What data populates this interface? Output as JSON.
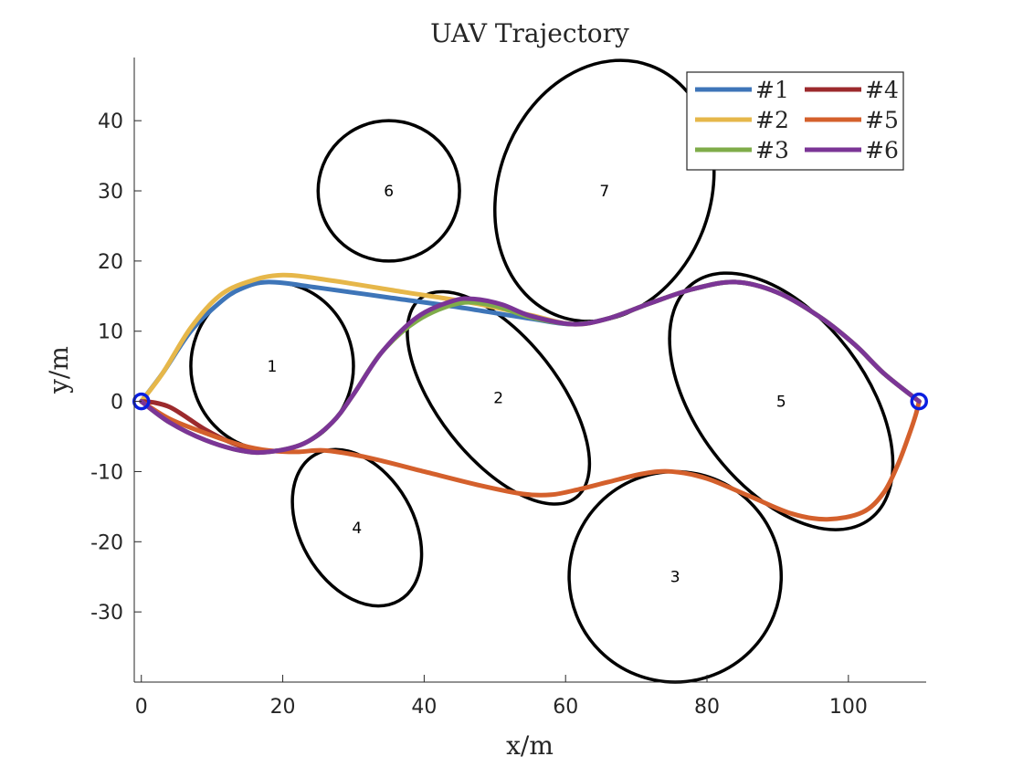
{
  "chart_data": {
    "type": "line",
    "title": "UAV Trajectory",
    "xlabel": "x/m",
    "ylabel": "y/m",
    "xlim": [
      -1,
      111
    ],
    "ylim": [
      -40,
      49
    ],
    "xticks": [
      0,
      20,
      40,
      60,
      80,
      100
    ],
    "yticks": [
      -30,
      -20,
      -10,
      0,
      10,
      20,
      30,
      40
    ],
    "legend": {
      "placement": "top-right",
      "columns": 2
    },
    "start_point": {
      "x": 0,
      "y": 0
    },
    "end_point": {
      "x": 110,
      "y": 0
    },
    "obstacles": [
      {
        "label": "1",
        "cx": 18.5,
        "cy": 5,
        "rx": 11.5,
        "ry": 12,
        "rotation_deg": 0
      },
      {
        "label": "2",
        "cx": 50.5,
        "cy": 0.5,
        "rx": 8.5,
        "ry": 18,
        "rotation_deg": 38
      },
      {
        "label": "3",
        "cx": 75.5,
        "cy": -25,
        "rx": 15,
        "ry": 15,
        "rotation_deg": 0
      },
      {
        "label": "4",
        "cx": 30.5,
        "cy": -18,
        "rx": 8,
        "ry": 12,
        "rotation_deg": 30
      },
      {
        "label": "5",
        "cx": 90.5,
        "cy": 0,
        "rx": 12,
        "ry": 21,
        "rotation_deg": 37
      },
      {
        "label": "6",
        "cx": 35,
        "cy": 30,
        "rx": 10,
        "ry": 10,
        "rotation_deg": 0
      },
      {
        "label": "7",
        "cx": 65.5,
        "cy": 30,
        "rx": 15,
        "ry": 19,
        "rotation_deg": -20
      }
    ],
    "series": [
      {
        "name": "#1",
        "color": "#3e75b8",
        "x": [
          0,
          3,
          7,
          11,
          14,
          18,
          25,
          35,
          45,
          55,
          61,
          66,
          72,
          78,
          84,
          90,
          96,
          101,
          105,
          110
        ],
        "y": [
          0,
          4,
          10,
          14,
          16,
          17,
          16.2,
          14.8,
          13.4,
          11.8,
          11,
          11.8,
          14,
          16,
          17,
          15.5,
          12,
          8,
          4,
          0
        ]
      },
      {
        "name": "#2",
        "color": "#e6b74a",
        "x": [
          0,
          3,
          7,
          11,
          15,
          20,
          27,
          37,
          47,
          55,
          61,
          66,
          72,
          78,
          84,
          90,
          96,
          101,
          105,
          110
        ],
        "y": [
          0,
          4,
          10.5,
          15,
          17,
          18,
          17.2,
          15.6,
          14,
          12.3,
          11,
          11.8,
          14,
          16,
          17,
          15.5,
          12,
          8,
          4,
          0
        ]
      },
      {
        "name": "#3",
        "color": "#7fac4a",
        "x": [
          0,
          4,
          9,
          14,
          18,
          23,
          27,
          30,
          34,
          39,
          45,
          50,
          55,
          61,
          66,
          72,
          78,
          84,
          90,
          96,
          101,
          105,
          110
        ],
        "y": [
          0,
          -3,
          -5.5,
          -7,
          -7.2,
          -6,
          -3,
          1,
          7,
          11.5,
          14,
          13.6,
          12,
          11,
          11.8,
          14,
          16,
          17,
          15.5,
          12,
          8,
          4,
          0
        ]
      },
      {
        "name": "#4",
        "color": "#9c2a2d",
        "x": [
          0,
          2,
          4,
          6,
          9,
          13,
          17
        ],
        "y": [
          0,
          -0.2,
          -0.8,
          -2,
          -4,
          -6,
          -7.2
        ]
      },
      {
        "name": "#5",
        "color": "#d4602c",
        "x": [
          0,
          4,
          9,
          14,
          18,
          22,
          26,
          32,
          40,
          48,
          54,
          58,
          62,
          66,
          71,
          75,
          80,
          86,
          92,
          97,
          102,
          105,
          107,
          108.5,
          109.5,
          110
        ],
        "y": [
          0,
          -2.5,
          -4.5,
          -6.2,
          -7,
          -7.2,
          -7,
          -8,
          -10,
          -12,
          -13.2,
          -13.3,
          -12.5,
          -11.5,
          -10.3,
          -10,
          -11,
          -13.5,
          -16,
          -16.8,
          -15.8,
          -13,
          -9,
          -5,
          -2,
          0
        ]
      },
      {
        "name": "#6",
        "color": "#7b3596",
        "x": [
          0,
          4,
          9,
          14,
          18,
          23,
          27,
          30,
          34,
          39,
          44,
          47,
          51,
          55,
          61,
          66,
          72,
          78,
          84,
          90,
          96,
          101,
          105,
          110
        ],
        "y": [
          0,
          -3,
          -5.5,
          -7,
          -7.2,
          -6,
          -3,
          1,
          7,
          12,
          14.3,
          14.6,
          13.8,
          12.2,
          11,
          11.8,
          14,
          16,
          17,
          15.5,
          12,
          8,
          4,
          0
        ]
      }
    ]
  }
}
